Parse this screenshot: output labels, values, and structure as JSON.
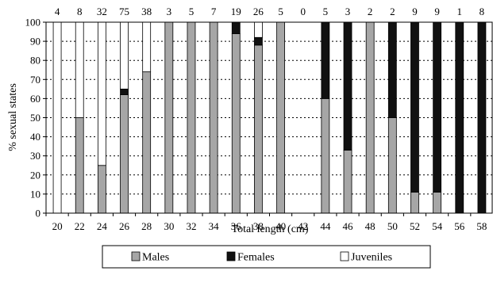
{
  "chart_data": {
    "type": "bar",
    "stacked": true,
    "categories": [
      "20",
      "22",
      "24",
      "26",
      "28",
      "30",
      "32",
      "34",
      "36",
      "38",
      "40",
      "42",
      "44",
      "46",
      "48",
      "50",
      "52",
      "54",
      "56",
      "58"
    ],
    "sample_sizes": [
      "4",
      "8",
      "32",
      "75",
      "38",
      "3",
      "5",
      "7",
      "19",
      "26",
      "5",
      "0",
      "5",
      "3",
      "2",
      "2",
      "9",
      "9",
      "1",
      "8"
    ],
    "series": [
      {
        "name": "Males",
        "color": "#a6a6a6",
        "values": [
          0,
          50,
          25,
          62,
          74,
          100,
          100,
          100,
          94,
          88,
          100,
          0,
          60,
          33,
          100,
          50,
          11,
          11,
          0,
          0
        ]
      },
      {
        "name": "Females",
        "color": "#111111",
        "values": [
          0,
          0,
          0,
          3,
          0,
          0,
          0,
          0,
          6,
          4,
          0,
          0,
          40,
          67,
          0,
          50,
          89,
          89,
          100,
          100
        ]
      },
      {
        "name": "Juveniles",
        "color": "#ffffff",
        "values": [
          100,
          50,
          75,
          35,
          26,
          0,
          0,
          0,
          0,
          8,
          0,
          0,
          0,
          0,
          0,
          0,
          0,
          0,
          0,
          0
        ]
      }
    ],
    "xlabel": "Total length (cm)",
    "ylabel": "% sexual states",
    "ylim": [
      0,
      100
    ],
    "yticks": [
      "0",
      "10",
      "20",
      "30",
      "40",
      "50",
      "60",
      "70",
      "80",
      "90",
      "100"
    ],
    "grid": "horizontal dotted",
    "legend_position": "bottom"
  }
}
